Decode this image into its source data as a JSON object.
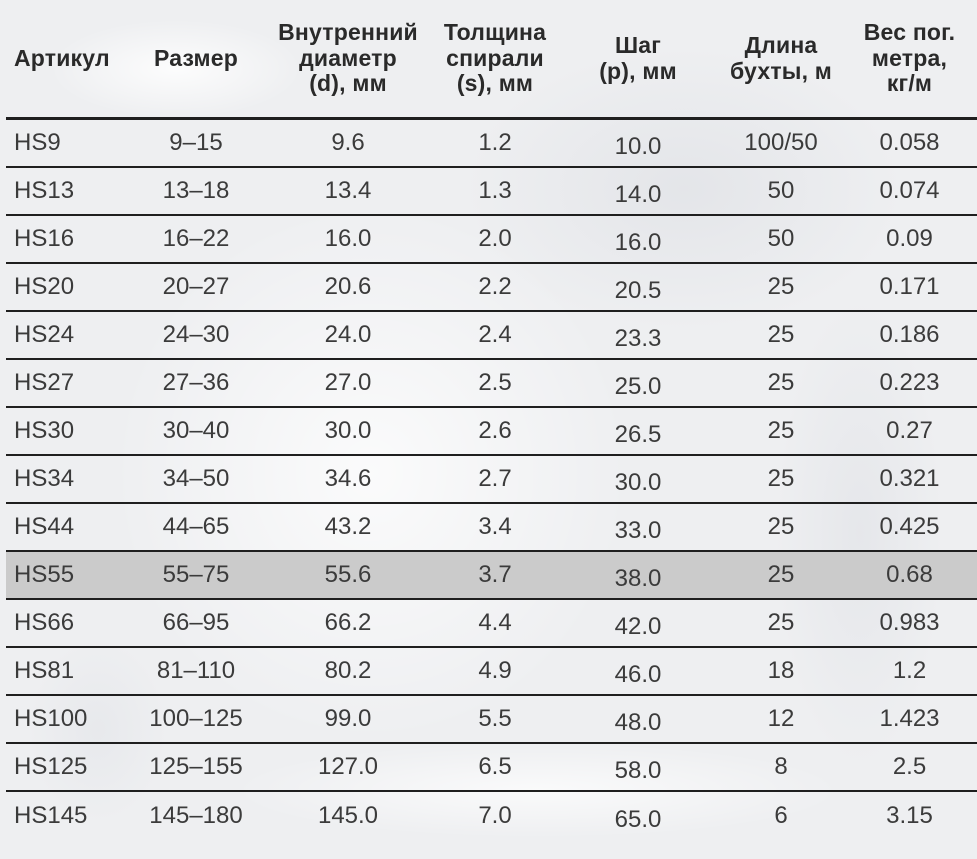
{
  "table": {
    "columns": [
      {
        "label": "Артикул"
      },
      {
        "label": "Размер"
      },
      {
        "label": [
          "Внутренний",
          "диаметр",
          "(d), мм"
        ]
      },
      {
        "label": [
          "Толщина",
          "спирали",
          "(s), мм"
        ]
      },
      {
        "label": [
          "Шаг",
          "(p), мм"
        ]
      },
      {
        "label": [
          "Длина",
          "бухты, м"
        ]
      },
      {
        "label": [
          "Вес пог.",
          "метра,",
          "кг/м"
        ]
      }
    ],
    "rows": [
      {
        "highlighted": false,
        "cells": [
          "HS9",
          "9–15",
          "9.6",
          "1.2",
          "10.0",
          "100/50",
          "0.058"
        ]
      },
      {
        "highlighted": false,
        "cells": [
          "HS13",
          "13–18",
          "13.4",
          "1.3",
          "14.0",
          "50",
          "0.074"
        ]
      },
      {
        "highlighted": false,
        "cells": [
          "HS16",
          "16–22",
          "16.0",
          "2.0",
          "16.0",
          "50",
          "0.09"
        ]
      },
      {
        "highlighted": false,
        "cells": [
          "HS20",
          "20–27",
          "20.6",
          "2.2",
          "20.5",
          "25",
          "0.171"
        ]
      },
      {
        "highlighted": false,
        "cells": [
          "HS24",
          "24–30",
          "24.0",
          "2.4",
          "23.3",
          "25",
          "0.186"
        ]
      },
      {
        "highlighted": false,
        "cells": [
          "HS27",
          "27–36",
          "27.0",
          "2.5",
          "25.0",
          "25",
          "0.223"
        ]
      },
      {
        "highlighted": false,
        "cells": [
          "HS30",
          "30–40",
          "30.0",
          "2.6",
          "26.5",
          "25",
          "0.27"
        ]
      },
      {
        "highlighted": false,
        "cells": [
          "HS34",
          "34–50",
          "34.6",
          "2.7",
          "30.0",
          "25",
          "0.321"
        ]
      },
      {
        "highlighted": false,
        "cells": [
          "HS44",
          "44–65",
          "43.2",
          "3.4",
          "33.0",
          "25",
          "0.425"
        ]
      },
      {
        "highlighted": true,
        "cells": [
          "HS55",
          "55–75",
          "55.6",
          "3.7",
          "38.0",
          "25",
          "0.68"
        ]
      },
      {
        "highlighted": false,
        "cells": [
          "HS66",
          "66–95",
          "66.2",
          "4.4",
          "42.0",
          "25",
          "0.983"
        ]
      },
      {
        "highlighted": false,
        "cells": [
          "HS81",
          "81–110",
          "80.2",
          "4.9",
          "46.0",
          "18",
          "1.2"
        ]
      },
      {
        "highlighted": false,
        "cells": [
          "HS100",
          "100–125",
          "99.0",
          "5.5",
          "48.0",
          "12",
          "1.423"
        ]
      },
      {
        "highlighted": false,
        "cells": [
          "HS125",
          "125–155",
          "127.0",
          "6.5",
          "58.0",
          "8",
          "2.5"
        ]
      },
      {
        "highlighted": false,
        "cells": [
          "HS145",
          "145–180",
          "145.0",
          "7.0",
          "65.0",
          "6",
          "3.15"
        ]
      }
    ]
  },
  "colors": {
    "background": "#eeeff1",
    "text": "#3b3b3b",
    "header_text": "#2a2a2a",
    "rule": "#1f1f1f",
    "highlight_row": "#cbcbcb"
  }
}
